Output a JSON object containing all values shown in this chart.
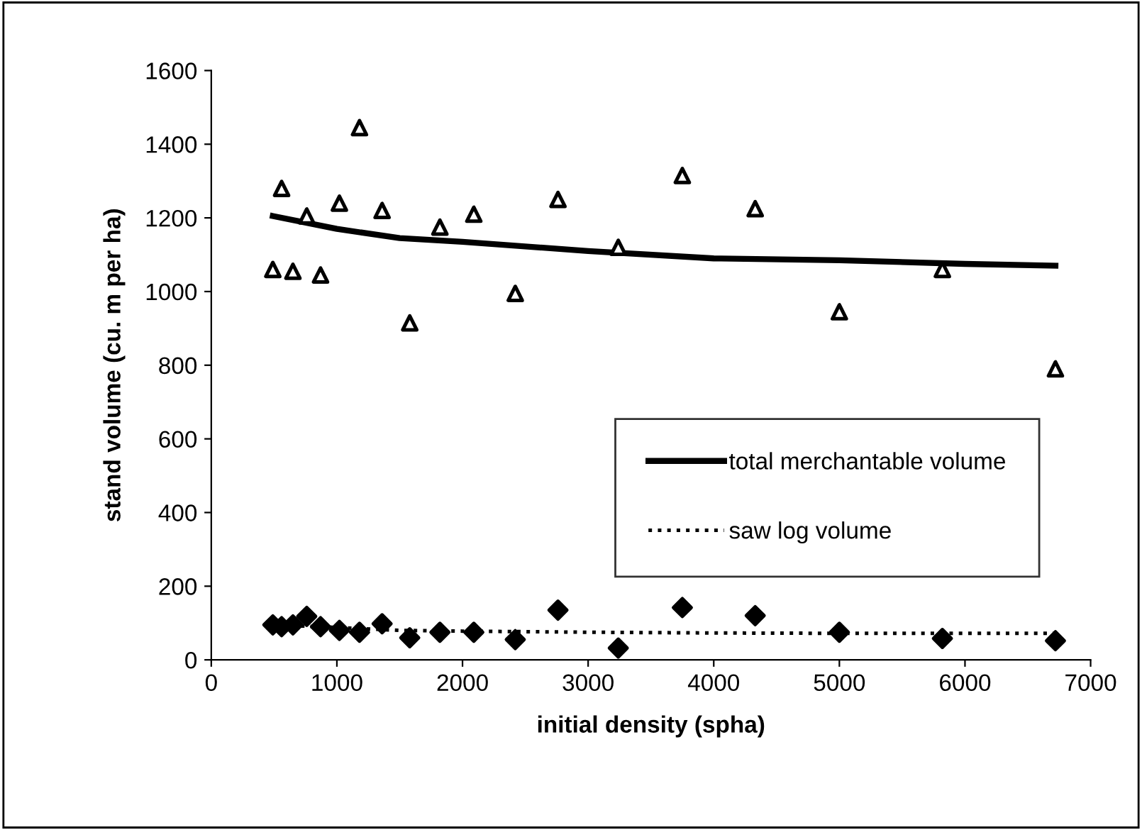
{
  "chart_data": {
    "type": "scatter",
    "xlabel": "initial density (spha)",
    "ylabel": "stand volume (cu. m per ha)",
    "xlim": [
      0,
      7000
    ],
    "xticks": [
      0,
      1000,
      2000,
      3000,
      4000,
      5000,
      6000,
      7000
    ],
    "ylim": [
      0,
      1600
    ],
    "yticks": [
      0,
      200,
      400,
      600,
      800,
      1000,
      1200,
      1400,
      1600
    ],
    "grid": false,
    "legend": "right",
    "series": [
      {
        "marker": "triangle",
        "color": "#000000",
        "x": [
          490,
          560,
          650,
          760,
          870,
          1020,
          1180,
          1360,
          1580,
          1820,
          2090,
          2420,
          2760,
          3240,
          3750,
          4330,
          5000,
          5820,
          6720
        ],
        "values": [
          1060,
          1280,
          1055,
          1205,
          1045,
          1240,
          1445,
          1220,
          915,
          1175,
          1210,
          995,
          1250,
          1120,
          1315,
          1225,
          945,
          1060,
          790
        ]
      },
      {
        "marker": "diamond",
        "color": "#000000",
        "x": [
          490,
          560,
          650,
          760,
          870,
          1020,
          1180,
          1360,
          1580,
          1820,
          2090,
          2420,
          2760,
          3240,
          3750,
          4330,
          5000,
          5820,
          6720
        ],
        "values": [
          95,
          90,
          95,
          118,
          90,
          80,
          75,
          98,
          60,
          75,
          75,
          55,
          135,
          32,
          142,
          120,
          75,
          58,
          52
        ]
      },
      {
        "type": "line",
        "name": "total merchantable volume",
        "line_style": "solid",
        "color": "#000000",
        "x": [
          490,
          1000,
          1500,
          2000,
          3000,
          4000,
          5000,
          6000,
          6720
        ],
        "values": [
          1205,
          1170,
          1145,
          1135,
          1110,
          1090,
          1085,
          1075,
          1070
        ]
      },
      {
        "type": "line",
        "name": "saw log volume",
        "line_style": "dotted",
        "color": "#000000",
        "x": [
          490,
          1000,
          1500,
          2000,
          3000,
          4000,
          5000,
          6000,
          6720
        ],
        "values": [
          95,
          88,
          80,
          78,
          75,
          73,
          72,
          72,
          72
        ]
      }
    ]
  }
}
